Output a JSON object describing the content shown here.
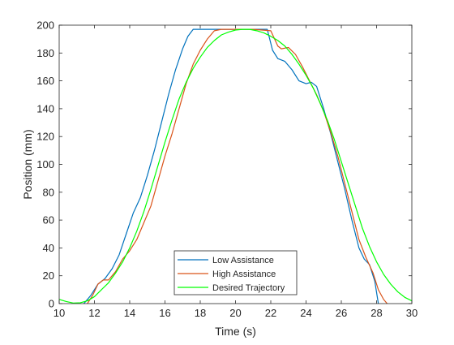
{
  "chart_data": {
    "type": "line",
    "title": "",
    "xlabel": "Time (s)",
    "ylabel": "Position (mm)",
    "xlim": [
      10,
      30
    ],
    "ylim": [
      0,
      200
    ],
    "xticks": [
      10,
      12,
      14,
      16,
      18,
      20,
      22,
      24,
      26,
      28,
      30
    ],
    "yticks": [
      0,
      20,
      40,
      60,
      80,
      100,
      120,
      140,
      160,
      180,
      200
    ],
    "grid": false,
    "legend_position": "bottom-center",
    "series": [
      {
        "name": "Low Assistance",
        "color": "#0072BD",
        "points": [
          [
            11.4,
            0
          ],
          [
            11.8,
            6
          ],
          [
            12.2,
            14
          ],
          [
            12.6,
            18
          ],
          [
            13.0,
            25
          ],
          [
            13.4,
            35
          ],
          [
            13.8,
            50
          ],
          [
            14.2,
            65
          ],
          [
            14.6,
            76
          ],
          [
            15.0,
            92
          ],
          [
            15.4,
            110
          ],
          [
            15.8,
            130
          ],
          [
            16.2,
            150
          ],
          [
            16.6,
            168
          ],
          [
            17.0,
            183
          ],
          [
            17.3,
            192
          ],
          [
            17.6,
            197
          ],
          [
            18.0,
            197
          ],
          [
            19.0,
            197
          ],
          [
            20.0,
            197
          ],
          [
            21.0,
            197
          ],
          [
            21.8,
            197
          ],
          [
            22.1,
            182
          ],
          [
            22.4,
            176
          ],
          [
            22.8,
            174
          ],
          [
            23.2,
            168
          ],
          [
            23.6,
            160
          ],
          [
            24.0,
            158
          ],
          [
            24.3,
            159
          ],
          [
            24.6,
            156
          ],
          [
            25.0,
            140
          ],
          [
            25.4,
            122
          ],
          [
            25.8,
            102
          ],
          [
            26.2,
            82
          ],
          [
            26.6,
            60
          ],
          [
            27.0,
            40
          ],
          [
            27.3,
            32
          ],
          [
            27.6,
            28
          ],
          [
            27.9,
            16
          ],
          [
            28.1,
            0
          ]
        ]
      },
      {
        "name": "High Assistance",
        "color": "#D95319",
        "points": [
          [
            11.6,
            0
          ],
          [
            11.9,
            6
          ],
          [
            12.2,
            14
          ],
          [
            12.5,
            17
          ],
          [
            12.8,
            17
          ],
          [
            13.2,
            23
          ],
          [
            13.6,
            32
          ],
          [
            14.0,
            38
          ],
          [
            14.4,
            46
          ],
          [
            14.8,
            58
          ],
          [
            15.2,
            70
          ],
          [
            15.6,
            88
          ],
          [
            16.0,
            106
          ],
          [
            16.4,
            122
          ],
          [
            16.8,
            140
          ],
          [
            17.2,
            158
          ],
          [
            17.6,
            172
          ],
          [
            18.0,
            182
          ],
          [
            18.4,
            190
          ],
          [
            18.8,
            196
          ],
          [
            19.2,
            197
          ],
          [
            20.0,
            197
          ],
          [
            21.0,
            197
          ],
          [
            22.0,
            196
          ],
          [
            22.4,
            185
          ],
          [
            22.6,
            183
          ],
          [
            23.0,
            184
          ],
          [
            23.4,
            179
          ],
          [
            23.8,
            170
          ],
          [
            24.2,
            160
          ],
          [
            24.6,
            150
          ],
          [
            25.0,
            138
          ],
          [
            25.4,
            123
          ],
          [
            25.8,
            106
          ],
          [
            26.2,
            86
          ],
          [
            26.6,
            66
          ],
          [
            27.0,
            46
          ],
          [
            27.4,
            33
          ],
          [
            27.8,
            22
          ],
          [
            28.1,
            10
          ],
          [
            28.4,
            3
          ],
          [
            28.6,
            0
          ]
        ]
      },
      {
        "name": "Desired Trajectory",
        "color": "#00FF00",
        "points": [
          [
            10.0,
            3
          ],
          [
            10.4,
            1.5
          ],
          [
            10.8,
            0.4
          ],
          [
            11.2,
            0.6
          ],
          [
            11.6,
            2
          ],
          [
            12.0,
            5
          ],
          [
            12.4,
            10
          ],
          [
            12.8,
            15
          ],
          [
            13.2,
            22
          ],
          [
            13.6,
            30
          ],
          [
            14.0,
            40
          ],
          [
            14.4,
            52
          ],
          [
            14.8,
            66
          ],
          [
            15.2,
            82
          ],
          [
            15.6,
            99
          ],
          [
            16.0,
            116
          ],
          [
            16.4,
            132
          ],
          [
            16.8,
            147
          ],
          [
            17.2,
            159
          ],
          [
            17.6,
            169
          ],
          [
            18.0,
            177
          ],
          [
            18.4,
            184
          ],
          [
            18.8,
            189
          ],
          [
            19.2,
            193
          ],
          [
            19.6,
            195
          ],
          [
            20.0,
            196.5
          ],
          [
            20.4,
            197
          ],
          [
            20.8,
            197
          ],
          [
            21.2,
            196
          ],
          [
            21.6,
            194.5
          ],
          [
            22.0,
            192
          ],
          [
            22.4,
            189
          ],
          [
            22.8,
            185
          ],
          [
            23.2,
            179
          ],
          [
            23.6,
            172
          ],
          [
            24.0,
            164
          ],
          [
            24.4,
            155
          ],
          [
            24.8,
            144
          ],
          [
            25.2,
            132
          ],
          [
            25.6,
            118
          ],
          [
            26.0,
            102
          ],
          [
            26.4,
            86
          ],
          [
            26.8,
            70
          ],
          [
            27.2,
            54
          ],
          [
            27.6,
            41
          ],
          [
            28.0,
            30
          ],
          [
            28.4,
            21
          ],
          [
            28.8,
            14
          ],
          [
            29.2,
            8.5
          ],
          [
            29.6,
            4.5
          ],
          [
            30.0,
            2
          ]
        ]
      }
    ]
  }
}
